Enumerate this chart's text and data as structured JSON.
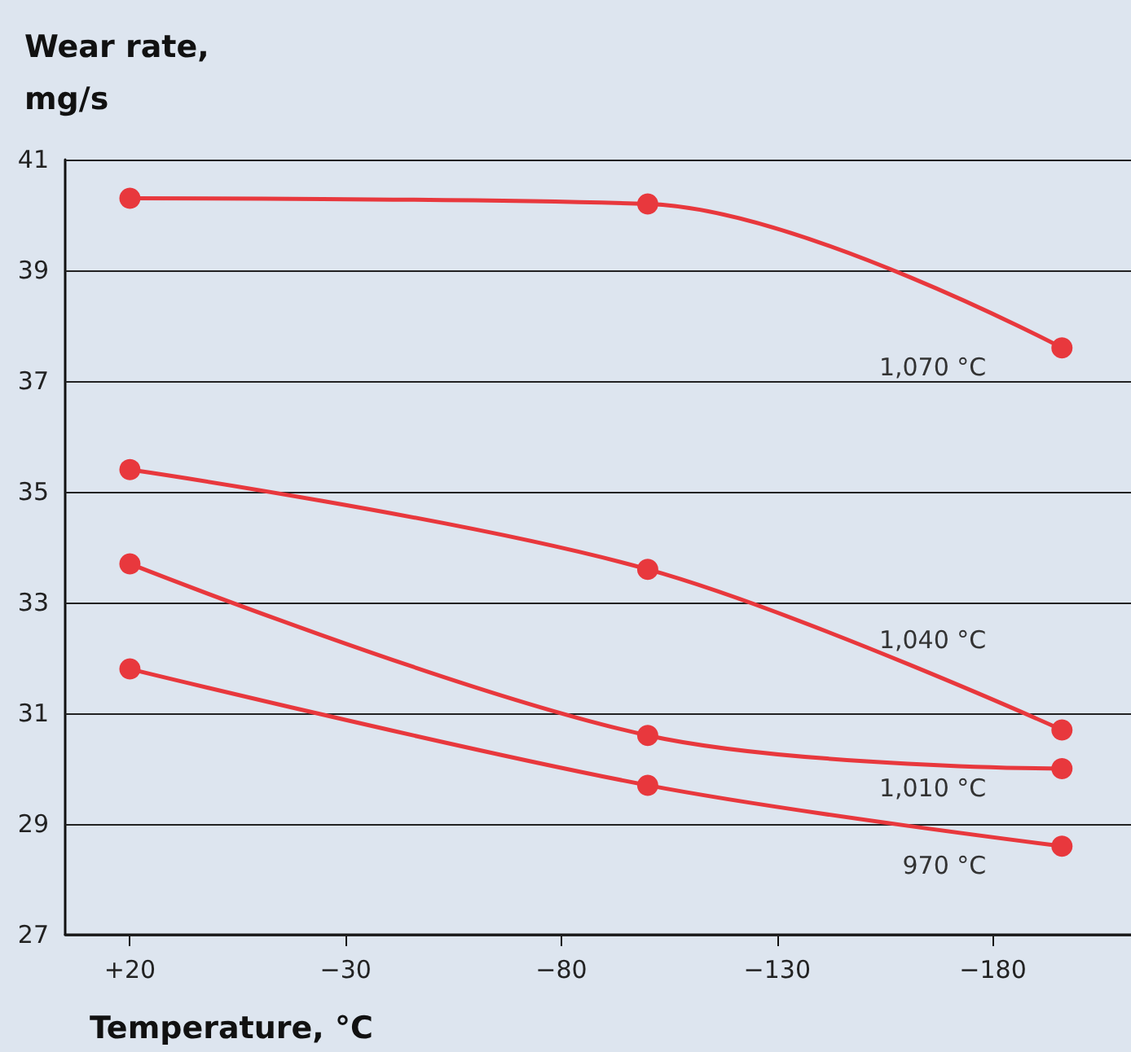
{
  "chart_data": {
    "type": "line",
    "xlabel": "Temperature, °C",
    "ylabel": "Wear rate,\nmg/s",
    "xlim": [
      35,
      -212
    ],
    "xticks": [
      {
        "value": 20,
        "label": "+20"
      },
      {
        "value": -30,
        "label": "−30"
      },
      {
        "value": -80,
        "label": "−80"
      },
      {
        "value": -130,
        "label": "−130"
      },
      {
        "value": -180,
        "label": "−180"
      }
    ],
    "ylim": [
      27,
      41
    ],
    "yticks": [
      27,
      29,
      31,
      33,
      35,
      37,
      39,
      41
    ],
    "x": [
      20,
      -100,
      -196
    ],
    "series": [
      {
        "name": "1,070 °C",
        "color": "#e8383d",
        "values": [
          40.3,
          40.2,
          37.6
        ]
      },
      {
        "name": "1,040 °C",
        "color": "#e8383d",
        "values": [
          35.4,
          33.6,
          30.7
        ]
      },
      {
        "name": "1,010 °C",
        "color": "#e8383d",
        "values": [
          33.7,
          30.6,
          30.0
        ]
      },
      {
        "name": "970 °C",
        "color": "#e8383d",
        "values": [
          31.8,
          29.7,
          28.6
        ]
      }
    ],
    "marker": "circle",
    "line_style": "solid",
    "grid": "y",
    "legend": false
  }
}
